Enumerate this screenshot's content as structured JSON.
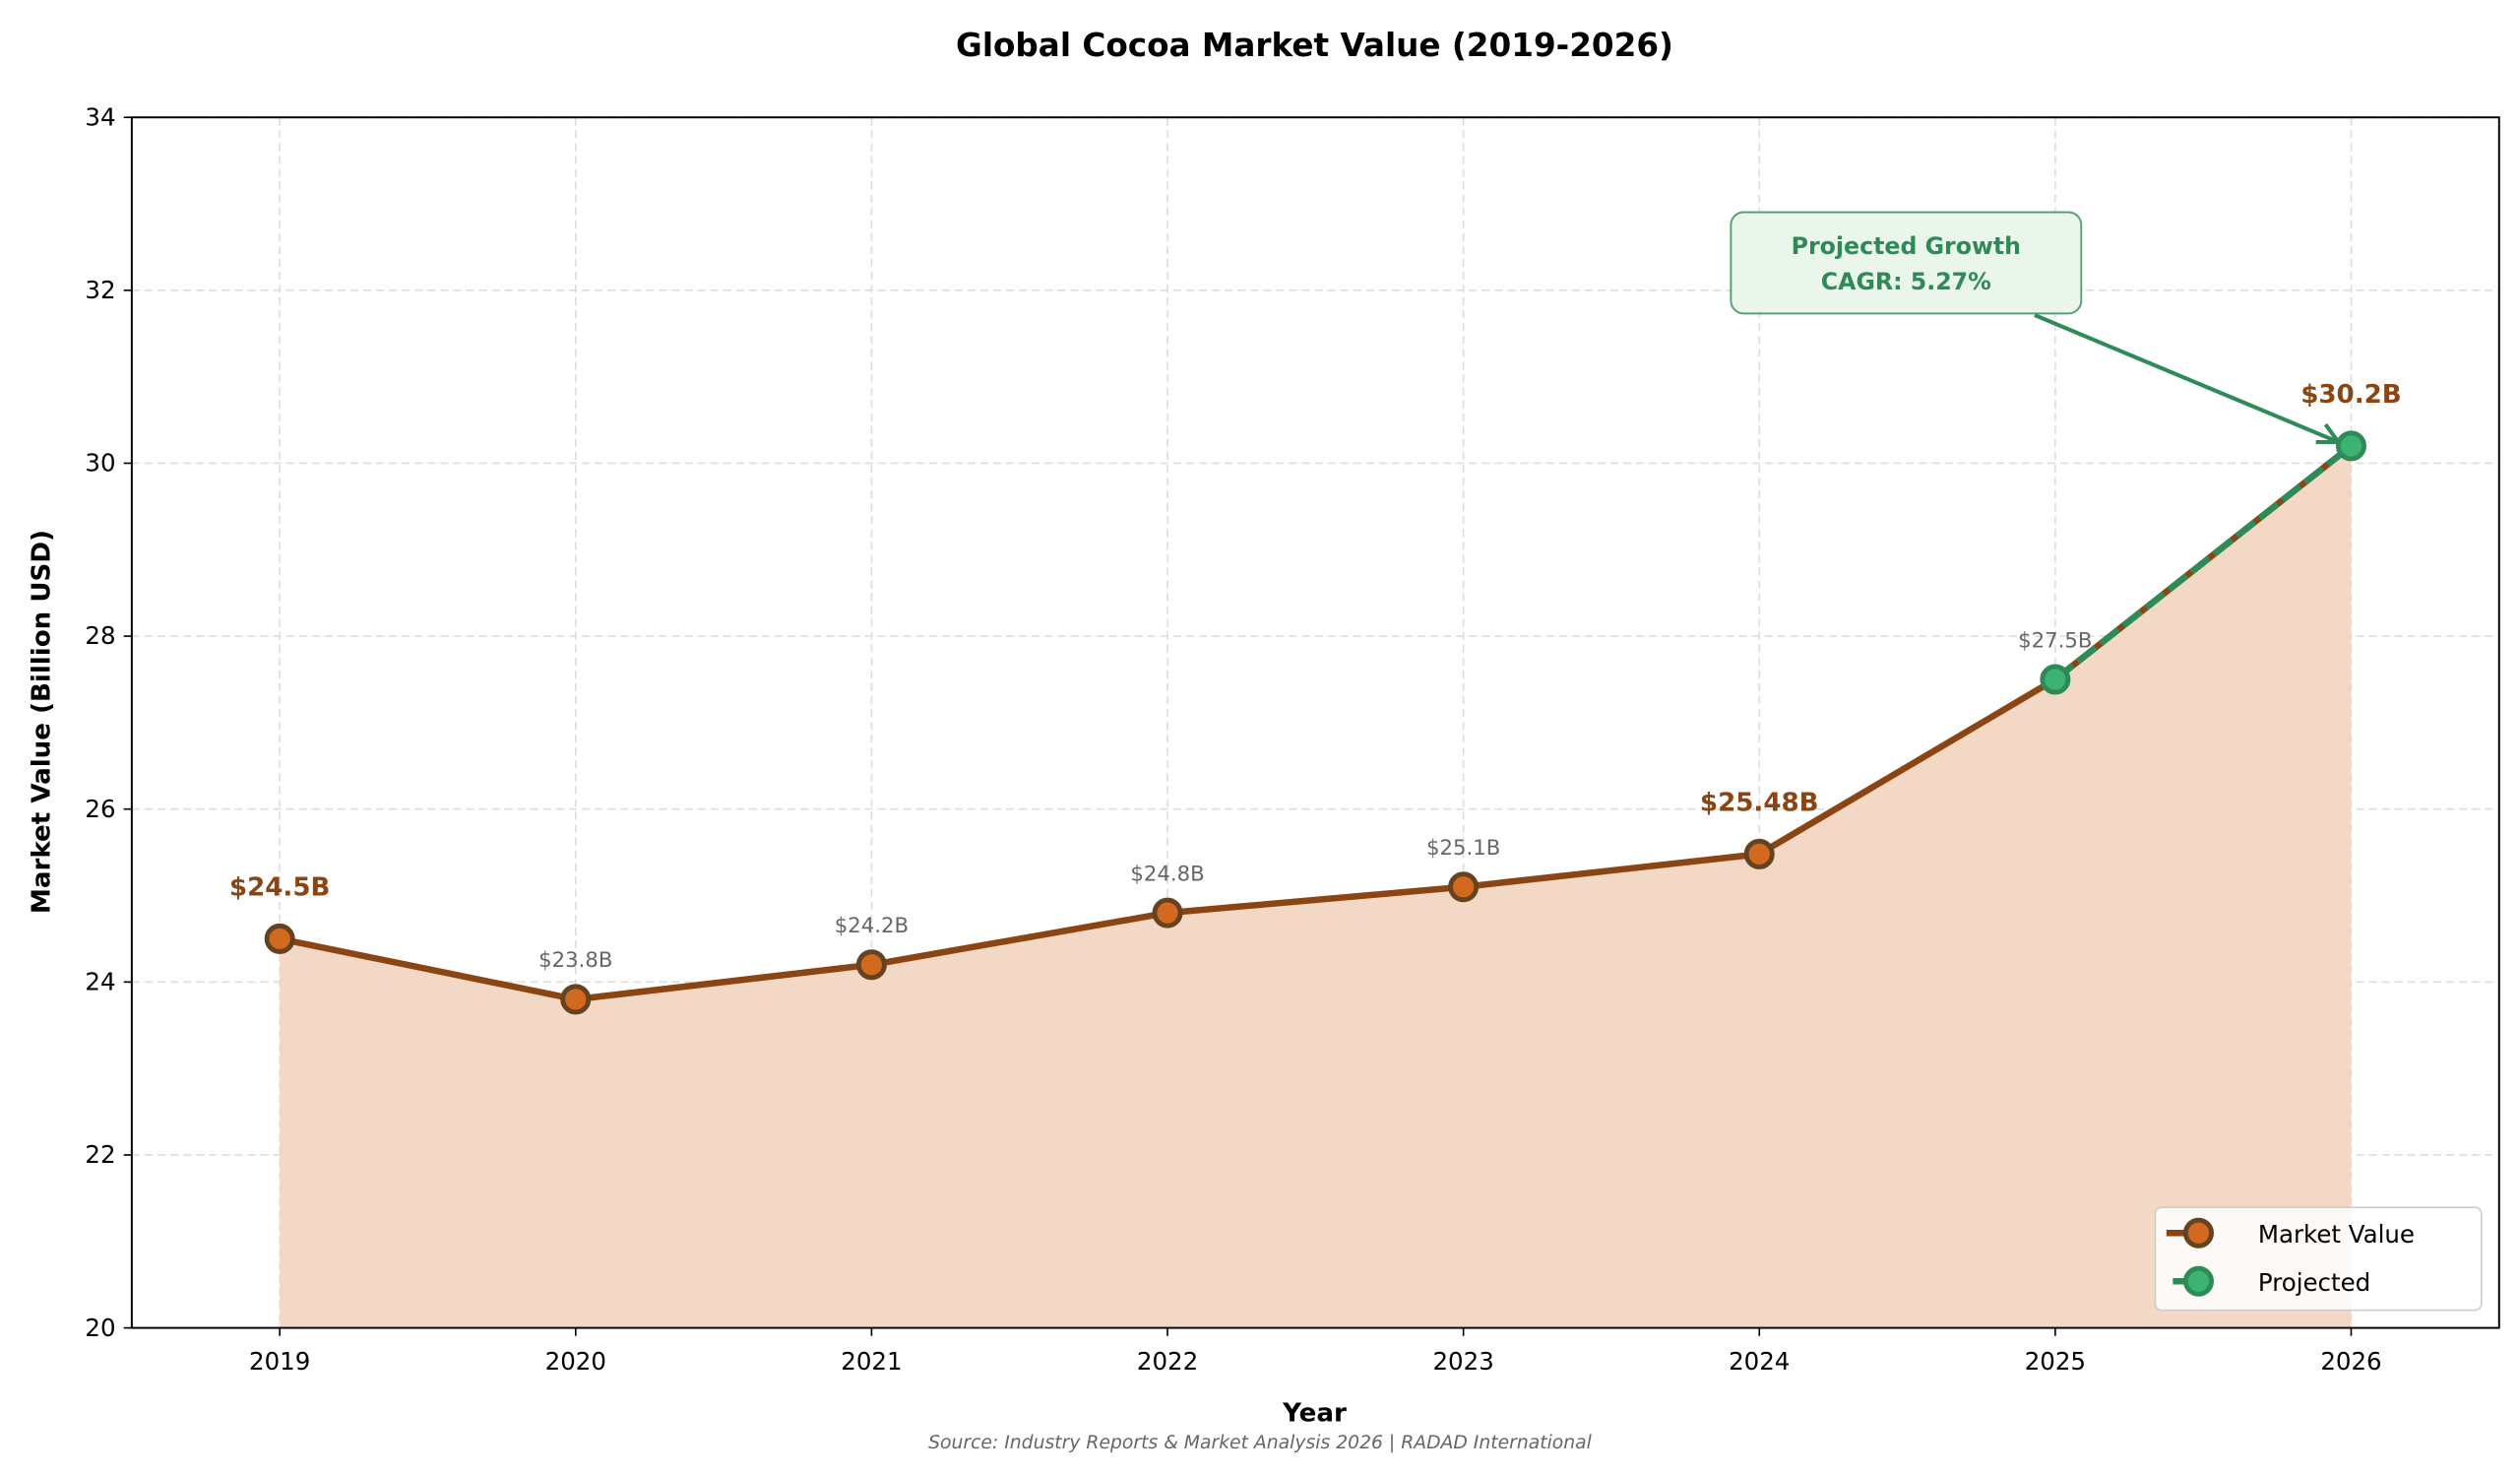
{
  "chart_data": {
    "type": "line",
    "title": "Global Cocoa Market Value (2019-2026)",
    "xlabel": "Year",
    "ylabel": "Market Value (Billion USD)",
    "x": [
      2019,
      2020,
      2021,
      2022,
      2023,
      2024,
      2025,
      2026
    ],
    "xlim": [
      2018.5,
      2026.5
    ],
    "ylim": [
      20,
      34
    ],
    "yticks": [
      20,
      22,
      24,
      26,
      28,
      30,
      32,
      34
    ],
    "grid": true,
    "area_fill": true,
    "series": [
      {
        "name": "Market Value",
        "values": [
          24.5,
          23.8,
          24.2,
          24.8,
          25.1,
          25.48,
          27.5,
          30.2
        ],
        "color": "#8B4513",
        "marker_color": "#D2691E",
        "marker_edge": "#654321"
      },
      {
        "name": "Projected",
        "x": [
          2025,
          2026
        ],
        "values": [
          27.5,
          30.2
        ],
        "color": "#2E8B57",
        "marker_color": "#3CB371",
        "style": "dashed"
      }
    ],
    "data_labels": [
      "$24.5B",
      "$23.8B",
      "$24.2B",
      "$24.8B",
      "$25.1B",
      "$25.48B",
      "$27.5B",
      "$30.2B"
    ],
    "highlighted_labels": [
      2019,
      2024,
      2026
    ],
    "annotation": {
      "line1": "Projected Growth",
      "line2": "CAGR: 5.27%",
      "target_x": 2026,
      "target_y": 30.2,
      "color": "#2E8B57"
    },
    "legend_placement": "lower-right",
    "fill_color": "#F2D8C5"
  },
  "source": "Source: Industry Reports & Market Analysis 2026 | RADAD International"
}
